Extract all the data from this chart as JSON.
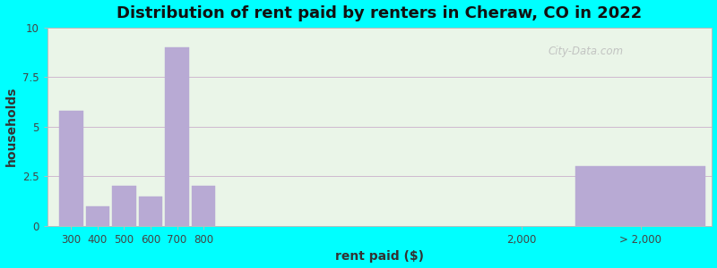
{
  "title": "Distribution of rent paid by renters in Cheraw, CO in 2022",
  "xlabel": "rent paid ($)",
  "ylabel": "households",
  "background_color": "#00FFFF",
  "bar_color": "#b8aad4",
  "values": [
    5.8,
    1.0,
    2.0,
    1.5,
    9.0,
    2.0,
    3.0
  ],
  "bar_positions": [
    300,
    400,
    500,
    600,
    700,
    800,
    2450
  ],
  "bar_widths": [
    90,
    90,
    90,
    90,
    90,
    90,
    490
  ],
  "xlim": [
    210,
    2720
  ],
  "ylim": [
    0,
    10
  ],
  "yticks": [
    0,
    2.5,
    5,
    7.5,
    10
  ],
  "xtick_positions": [
    300,
    400,
    500,
    600,
    700,
    800,
    2000,
    2450
  ],
  "xtick_labels": [
    "300",
    "400",
    "500",
    "600",
    "700",
    "800",
    "2,000",
    "> 2,000"
  ],
  "title_fontsize": 13,
  "axis_label_fontsize": 10,
  "tick_fontsize": 8.5,
  "watermark_text": "City-Data.com",
  "grid_color": "#c8aac8",
  "plot_bg_color": "#eaf5e8"
}
